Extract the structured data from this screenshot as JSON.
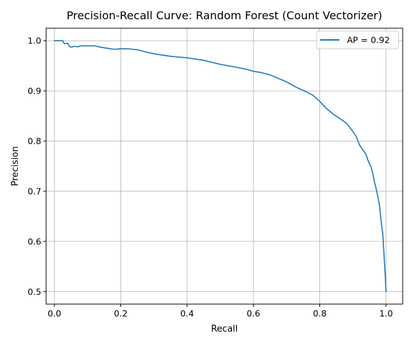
{
  "chart_data": {
    "type": "line",
    "title": "Precision-Recall Curve: Random Forest (Count Vectorizer)",
    "xlabel": "Recall",
    "ylabel": "Precision",
    "xlim": [
      -0.025,
      1.05
    ],
    "ylim": [
      0.475,
      1.025
    ],
    "xticks": [
      0.0,
      0.2,
      0.4,
      0.6,
      0.8,
      1.0
    ],
    "xtick_labels": [
      "0.0",
      "0.2",
      "0.4",
      "0.6",
      "0.8",
      "1.0"
    ],
    "yticks": [
      0.5,
      0.6,
      0.7,
      0.8,
      0.9,
      1.0
    ],
    "ytick_labels": [
      "0.5",
      "0.6",
      "0.7",
      "0.8",
      "0.9",
      "1.0"
    ],
    "grid": true,
    "legend_position": "upper-right",
    "series": [
      {
        "name": "AP = 0.92",
        "color": "#1f77b4",
        "x": [
          0.0,
          0.01,
          0.02,
          0.025,
          0.03,
          0.04,
          0.045,
          0.05,
          0.06,
          0.07,
          0.08,
          0.09,
          0.1,
          0.12,
          0.14,
          0.16,
          0.18,
          0.2,
          0.22,
          0.25,
          0.28,
          0.3,
          0.35,
          0.4,
          0.45,
          0.5,
          0.55,
          0.58,
          0.6,
          0.62,
          0.65,
          0.7,
          0.73,
          0.76,
          0.78,
          0.8,
          0.82,
          0.84,
          0.86,
          0.88,
          0.9,
          0.91,
          0.92,
          0.94,
          0.945,
          0.95,
          0.955,
          0.96,
          0.965,
          0.97,
          0.975,
          0.98,
          0.985,
          0.99,
          0.995,
          1.0,
          1.0
        ],
        "y": [
          1.0,
          1.0,
          1.0,
          1.0,
          0.994,
          0.995,
          0.989,
          0.987,
          0.989,
          0.988,
          0.99,
          0.99,
          0.99,
          0.99,
          0.987,
          0.985,
          0.983,
          0.984,
          0.984,
          0.982,
          0.977,
          0.974,
          0.969,
          0.966,
          0.961,
          0.953,
          0.947,
          0.943,
          0.939,
          0.937,
          0.932,
          0.918,
          0.907,
          0.898,
          0.891,
          0.879,
          0.865,
          0.854,
          0.845,
          0.836,
          0.819,
          0.809,
          0.792,
          0.773,
          0.762,
          0.755,
          0.748,
          0.735,
          0.718,
          0.705,
          0.69,
          0.672,
          0.64,
          0.615,
          0.56,
          0.5,
          0.5
        ]
      }
    ]
  }
}
